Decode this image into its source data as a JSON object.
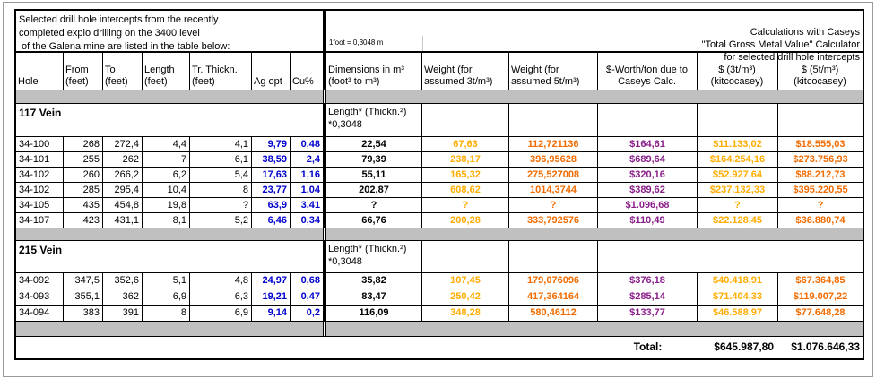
{
  "title_left": "Selected drill hole intercepts from the recently\ncompleted explo drilling on the 3400 level\n of the Galena mine are listed in the table below:",
  "title_right": "Calculations with Caseys\n\"Total Gross Metal Value\" Calculator\nfor selected drill hole intercepts",
  "conversion_note": "1foot = 0,3048 m",
  "headers": {
    "hole": "Hole",
    "from": "From\n(feet)",
    "to": "To\n(feet)",
    "length": "Length\n(feet)",
    "tr_thickn": "Tr. Thickn.\n(feet)",
    "ag": "Ag opt",
    "cu": "Cu%",
    "dimensions": "Dimensions in m³\n(foot³ to m³)",
    "weight3": "Weight (for\nassumed 3t/m³)",
    "weight5": "Weight (for\nassumed 5t/m³)",
    "worth": "$-Worth/ton due to\nCaseys Calc.",
    "dollars3": "$ (3t/m³)\n(kitcocasey)",
    "dollars5": "$ (5t/m³)\n(kitcocasey)"
  },
  "sections": [
    {
      "name": "117 Vein",
      "dim_formula": "Length* (Thickn.²)\n*0,3048",
      "rows": [
        {
          "hole": "34-100",
          "from": "268",
          "to": "272,4",
          "length": "4,4",
          "tr": "4,1",
          "ag": "9,79",
          "cu": "0,48",
          "dim": "22,54",
          "w3": "67,63",
          "w5": "112,721136",
          "worth": "$164,61",
          "d3": "$11.133,02",
          "d5": "$18.555,03"
        },
        {
          "hole": "34-101",
          "from": "255",
          "to": "262",
          "length": "7",
          "tr": "6,1",
          "ag": "38,59",
          "cu": "2,4",
          "dim": "79,39",
          "w3": "238,17",
          "w5": "396,95628",
          "worth": "$689,64",
          "d3": "$164.254,16",
          "d5": "$273.756,93"
        },
        {
          "hole": "34-102",
          "from": "260",
          "to": "266,2",
          "length": "6,2",
          "tr": "5,4",
          "ag": "17,63",
          "cu": "1,16",
          "dim": "55,11",
          "w3": "165,32",
          "w5": "275,527008",
          "worth": "$320,16",
          "d3": "$52.927,64",
          "d5": "$88.212,73"
        },
        {
          "hole": "34-102",
          "from": "285",
          "to": "295,4",
          "length": "10,4",
          "tr": "8",
          "ag": "23,77",
          "cu": "1,04",
          "dim": "202,87",
          "w3": "608,62",
          "w5": "1014,3744",
          "worth": "$389,62",
          "d3": "$237.132,33",
          "d5": "$395.220,55"
        },
        {
          "hole": "34-105",
          "from": "435",
          "to": "454,8",
          "length": "19,8",
          "tr": "?",
          "ag": "63,9",
          "cu": "3,41",
          "dim": "?",
          "w3": "?",
          "w5": "?",
          "worth": "$1.096,68",
          "d3": "?",
          "d5": "?"
        },
        {
          "hole": "34-107",
          "from": "423",
          "to": "431,1",
          "length": "8,1",
          "tr": "5,2",
          "ag": "6,46",
          "cu": "0,34",
          "dim": "66,76",
          "w3": "200,28",
          "w5": "333,792576",
          "worth": "$110,49",
          "d3": "$22.128,45",
          "d5": "$36.880,74"
        }
      ]
    },
    {
      "name": "215 Vein",
      "dim_formula": "Length* (Thickn.²)\n*0,3048",
      "rows": [
        {
          "hole": "34-092",
          "from": "347,5",
          "to": "352,6",
          "length": "5,1",
          "tr": "4,8",
          "ag": "24,97",
          "cu": "0,68",
          "dim": "35,82",
          "w3": "107,45",
          "w5": "179,076096",
          "worth": "$376,18",
          "d3": "$40.418,91",
          "d5": "$67.364,85"
        },
        {
          "hole": "34-093",
          "from": "355,1",
          "to": "362",
          "length": "6,9",
          "tr": "6,3",
          "ag": "19,21",
          "cu": "0,47",
          "dim": "83,47",
          "w3": "250,42",
          "w5": "417,364164",
          "worth": "$285,14",
          "d3": "$71.404,33",
          "d5": "$119.007,22"
        },
        {
          "hole": "34-094",
          "from": "383",
          "to": "391",
          "length": "8",
          "tr": "6,9",
          "ag": "9,14",
          "cu": "0,2",
          "dim": "116,09",
          "w3": "348,28",
          "w5": "580,46112",
          "worth": "$133,77",
          "d3": "$46.588,97",
          "d5": "$77.648,28"
        }
      ]
    }
  ],
  "total": {
    "label": "Total:",
    "value_3t": "$645.987,80",
    "value_5t": "$1.076.646,33"
  },
  "colors": {
    "ag_cu_text": "#0000CD",
    "weight_3t_text": "#FFAC00",
    "weight_5t_text": "#F26B00",
    "worth_text": "#8A1F8A",
    "separator_band": "#C0C0C0",
    "grid": "#000000"
  }
}
